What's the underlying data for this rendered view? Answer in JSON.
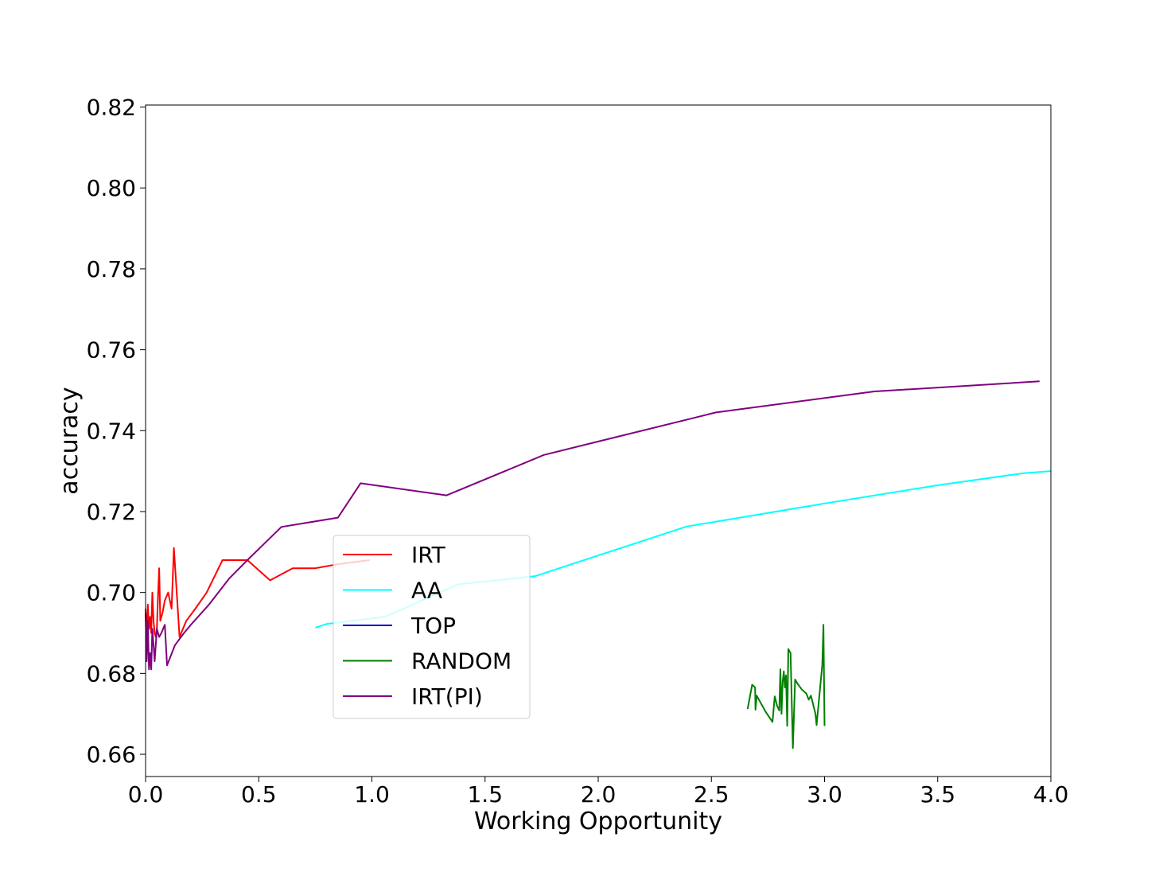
{
  "chart_data": {
    "type": "line",
    "title": "",
    "xlabel": "Working Opportunity",
    "ylabel": "accuracy",
    "xlim": [
      0.0,
      4.0
    ],
    "ylim": [
      0.6545,
      0.8205
    ],
    "xticks": [
      0.0,
      0.5,
      1.0,
      1.5,
      2.0,
      2.5,
      3.0,
      3.5,
      4.0
    ],
    "xtick_labels": [
      "0.0",
      "0.5",
      "1.0",
      "1.5",
      "2.0",
      "2.5",
      "3.0",
      "3.5",
      "4.0"
    ],
    "yticks": [
      0.66,
      0.68,
      0.7,
      0.72,
      0.74,
      0.76,
      0.78,
      0.8,
      0.82
    ],
    "ytick_labels": [
      "0.66",
      "0.68",
      "0.70",
      "0.72",
      "0.74",
      "0.76",
      "0.78",
      "0.80",
      "0.82"
    ],
    "grid": false,
    "legend_position": "lower-center-left",
    "series": [
      {
        "name": "IRT",
        "color": "#ff0000",
        "x": [
          0.0,
          0.005,
          0.01,
          0.015,
          0.02,
          0.025,
          0.03,
          0.035,
          0.04,
          0.045,
          0.05,
          0.055,
          0.06,
          0.065,
          0.075,
          0.085,
          0.1,
          0.115,
          0.125,
          0.15,
          0.18,
          0.22,
          0.27,
          0.34,
          0.45,
          0.55,
          0.65,
          0.75,
          0.85,
          0.99
        ],
        "y": [
          0.696,
          0.689,
          0.697,
          0.691,
          0.694,
          0.69,
          0.7,
          0.693,
          0.69,
          0.689,
          0.691,
          0.699,
          0.706,
          0.693,
          0.695,
          0.698,
          0.7,
          0.696,
          0.711,
          0.689,
          0.693,
          0.696,
          0.7,
          0.708,
          0.708,
          0.703,
          0.706,
          0.706,
          0.707,
          0.708
        ]
      },
      {
        "name": "AA",
        "color": "#00ffff",
        "x": [
          0.75,
          0.8,
          1.06,
          1.32,
          1.38,
          1.72,
          2.39,
          3.0,
          3.5,
          3.88,
          4.0
        ],
        "y": [
          0.6913,
          0.6922,
          0.694,
          0.7005,
          0.702,
          0.704,
          0.7163,
          0.722,
          0.7265,
          0.7295,
          0.73
        ]
      },
      {
        "name": "TOP",
        "color": "#0000cd",
        "x": [],
        "y": []
      },
      {
        "name": "RANDOM",
        "color": "#008000",
        "x": [
          2.66,
          2.68,
          2.693,
          2.695,
          2.7,
          2.74,
          2.77,
          2.78,
          2.79,
          2.8,
          2.805,
          2.81,
          2.815,
          2.82,
          2.825,
          2.83,
          2.835,
          2.84,
          2.85,
          2.86,
          2.87,
          2.88,
          2.9,
          2.92,
          2.93,
          2.94,
          2.96,
          2.965,
          2.99,
          2.995,
          3.0
        ],
        "y": [
          0.6712,
          0.6772,
          0.6765,
          0.671,
          0.6745,
          0.6705,
          0.668,
          0.6743,
          0.672,
          0.6708,
          0.681,
          0.67,
          0.678,
          0.6805,
          0.6765,
          0.6795,
          0.667,
          0.686,
          0.685,
          0.6615,
          0.6785,
          0.6775,
          0.676,
          0.675,
          0.6735,
          0.6745,
          0.67,
          0.6672,
          0.6822,
          0.692,
          0.667
        ]
      },
      {
        "name": "IRT(PI)",
        "color": "#800080",
        "x": [
          0.0,
          0.005,
          0.01,
          0.015,
          0.02,
          0.025,
          0.03,
          0.035,
          0.04,
          0.05,
          0.06,
          0.07,
          0.085,
          0.095,
          0.13,
          0.17,
          0.2,
          0.28,
          0.37,
          0.45,
          0.6,
          0.85,
          0.95,
          1.33,
          1.76,
          2.52,
          3.22,
          3.95
        ],
        "y": [
          0.695,
          0.683,
          0.693,
          0.681,
          0.685,
          0.681,
          0.691,
          0.687,
          0.683,
          0.691,
          0.689,
          0.69,
          0.692,
          0.682,
          0.687,
          0.69,
          0.692,
          0.697,
          0.7035,
          0.708,
          0.7162,
          0.7185,
          0.727,
          0.724,
          0.734,
          0.7445,
          0.7497,
          0.7522
        ]
      }
    ]
  }
}
